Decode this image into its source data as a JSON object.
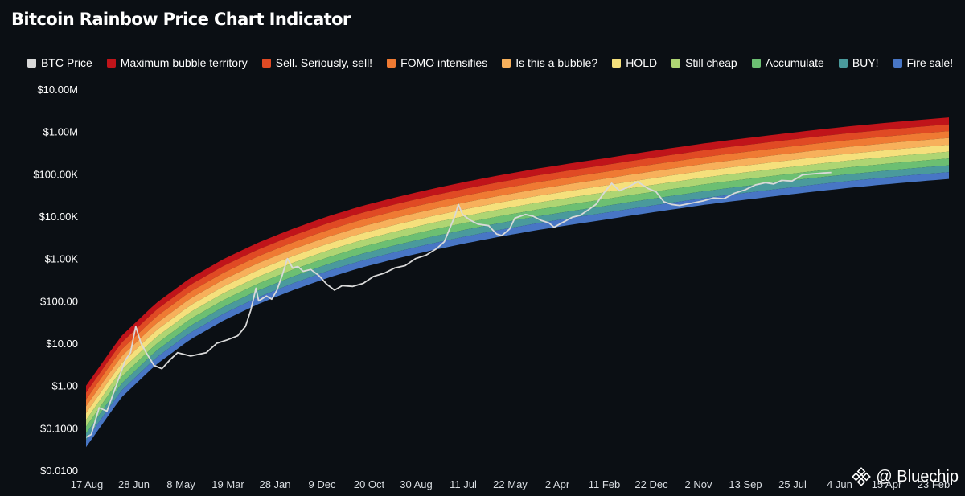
{
  "title": "Bitcoin Rainbow Price Chart Indicator",
  "watermark": {
    "text": "@ Bluechip",
    "icon": "binance-diamond-icon"
  },
  "chart_data": {
    "type": "area",
    "title": "Bitcoin Rainbow Price Chart Indicator",
    "y_scale": "log",
    "ylim": [
      0.01,
      10000000
    ],
    "grid": false,
    "legend_position": "top",
    "y_ticks": [
      {
        "value": 10000000,
        "label": "$10.00M"
      },
      {
        "value": 1000000,
        "label": "$1.00M"
      },
      {
        "value": 100000,
        "label": "$100.00K"
      },
      {
        "value": 10000,
        "label": "$10.00K"
      },
      {
        "value": 1000,
        "label": "$1.00K"
      },
      {
        "value": 100,
        "label": "$100.00"
      },
      {
        "value": 10,
        "label": "$10.00"
      },
      {
        "value": 1,
        "label": "$1.00"
      },
      {
        "value": 0.1,
        "label": "$0.1000"
      },
      {
        "value": 0.01,
        "label": "$0.0100"
      }
    ],
    "x_tick_labels": [
      "17 Aug",
      "28 Jun",
      "8 May",
      "19 Mar",
      "28 Jan",
      "9 Dec",
      "20 Oct",
      "30 Aug",
      "11 Jul",
      "22 May",
      "2 Apr",
      "11 Feb",
      "22 Dec",
      "2 Nov",
      "13 Sep",
      "25 Jul",
      "4 Jun",
      "15 Apr",
      "23 Feb"
    ],
    "band_lower_edge": [
      0.035,
      0.5,
      3,
      12,
      35,
      85,
      180,
      350,
      620,
      1000,
      1550,
      2300,
      3300,
      4600,
      6200,
      8200,
      11000,
      14500,
      19000,
      24000,
      30000,
      37500,
      46000,
      55000,
      65000,
      76000
    ],
    "band_ratio": 1.45,
    "bands": [
      {
        "name": "Maximum bubble territory",
        "color": "#c0141a"
      },
      {
        "name": "Sell. Seriously, sell!",
        "color": "#e04a24"
      },
      {
        "name": "FOMO intensifies",
        "color": "#ef7a33"
      },
      {
        "name": "Is this a bubble?",
        "color": "#f7b05b"
      },
      {
        "name": "HOLD",
        "color": "#f5e07c"
      },
      {
        "name": "Still cheap",
        "color": "#aed573"
      },
      {
        "name": "Accumulate",
        "color": "#6cbf72"
      },
      {
        "name": "BUY!",
        "color": "#4a9a9c"
      },
      {
        "name": "Fire sale!",
        "color": "#4876c5"
      }
    ],
    "series": [
      {
        "name": "BTC Price",
        "color": "#d9d9d9",
        "points": [
          [
            0,
            0.06
          ],
          [
            0.1,
            0.07
          ],
          [
            0.25,
            0.3
          ],
          [
            0.4,
            0.25
          ],
          [
            0.6,
            1.2
          ],
          [
            0.75,
            4
          ],
          [
            0.85,
            6
          ],
          [
            0.95,
            25
          ],
          [
            1.05,
            10
          ],
          [
            1.15,
            6
          ],
          [
            1.3,
            3
          ],
          [
            1.45,
            2.5
          ],
          [
            1.6,
            4
          ],
          [
            1.75,
            6
          ],
          [
            2.0,
            5
          ],
          [
            2.3,
            6
          ],
          [
            2.5,
            10
          ],
          [
            2.7,
            12
          ],
          [
            2.9,
            15
          ],
          [
            3.05,
            25
          ],
          [
            3.15,
            60
          ],
          [
            3.25,
            200
          ],
          [
            3.3,
            100
          ],
          [
            3.45,
            130
          ],
          [
            3.55,
            110
          ],
          [
            3.65,
            180
          ],
          [
            3.75,
            400
          ],
          [
            3.85,
            1000
          ],
          [
            3.95,
            600
          ],
          [
            4.05,
            650
          ],
          [
            4.15,
            500
          ],
          [
            4.3,
            550
          ],
          [
            4.45,
            400
          ],
          [
            4.6,
            250
          ],
          [
            4.75,
            180
          ],
          [
            4.9,
            230
          ],
          [
            5.1,
            220
          ],
          [
            5.3,
            260
          ],
          [
            5.5,
            380
          ],
          [
            5.7,
            450
          ],
          [
            5.9,
            600
          ],
          [
            6.1,
            680
          ],
          [
            6.3,
            1000
          ],
          [
            6.5,
            1200
          ],
          [
            6.7,
            1700
          ],
          [
            6.85,
            2500
          ],
          [
            6.95,
            5000
          ],
          [
            7.05,
            10000
          ],
          [
            7.12,
            19000
          ],
          [
            7.2,
            11000
          ],
          [
            7.35,
            8000
          ],
          [
            7.5,
            6500
          ],
          [
            7.7,
            6000
          ],
          [
            7.85,
            3800
          ],
          [
            7.95,
            3500
          ],
          [
            8.1,
            5000
          ],
          [
            8.2,
            9000
          ],
          [
            8.4,
            11000
          ],
          [
            8.55,
            10000
          ],
          [
            8.7,
            8000
          ],
          [
            8.85,
            7000
          ],
          [
            8.95,
            5500
          ],
          [
            9.1,
            7000
          ],
          [
            9.3,
            9500
          ],
          [
            9.45,
            10500
          ],
          [
            9.6,
            14000
          ],
          [
            9.75,
            19000
          ],
          [
            9.9,
            35000
          ],
          [
            10.05,
            60000
          ],
          [
            10.2,
            40000
          ],
          [
            10.35,
            48000
          ],
          [
            10.55,
            65000
          ],
          [
            10.75,
            45000
          ],
          [
            10.9,
            38000
          ],
          [
            11.05,
            22000
          ],
          [
            11.2,
            19000
          ],
          [
            11.35,
            18000
          ],
          [
            11.55,
            20000
          ],
          [
            11.8,
            23000
          ],
          [
            12.0,
            27000
          ],
          [
            12.2,
            26000
          ],
          [
            12.4,
            35000
          ],
          [
            12.6,
            42000
          ],
          [
            12.8,
            55000
          ],
          [
            13.0,
            62000
          ],
          [
            13.15,
            58000
          ],
          [
            13.3,
            70000
          ],
          [
            13.5,
            68000
          ],
          [
            13.7,
            95000
          ],
          [
            13.9,
            100000
          ],
          [
            14.1,
            105000
          ],
          [
            14.25,
            108000
          ]
        ]
      }
    ]
  },
  "legend": [
    {
      "label": "BTC Price",
      "color": "#d9d9d9"
    },
    {
      "label": "Maximum bubble territory",
      "color": "#c0141a"
    },
    {
      "label": "Sell. Seriously, sell!",
      "color": "#e04a24"
    },
    {
      "label": "FOMO intensifies",
      "color": "#ef7a33"
    },
    {
      "label": "Is this a bubble?",
      "color": "#f7b05b"
    },
    {
      "label": "HOLD",
      "color": "#f5e07c"
    },
    {
      "label": "Still cheap",
      "color": "#aed573"
    },
    {
      "label": "Accumulate",
      "color": "#6cbf72"
    },
    {
      "label": "BUY!",
      "color": "#4a9a9c"
    },
    {
      "label": "Fire sale!",
      "color": "#4876c5"
    }
  ]
}
